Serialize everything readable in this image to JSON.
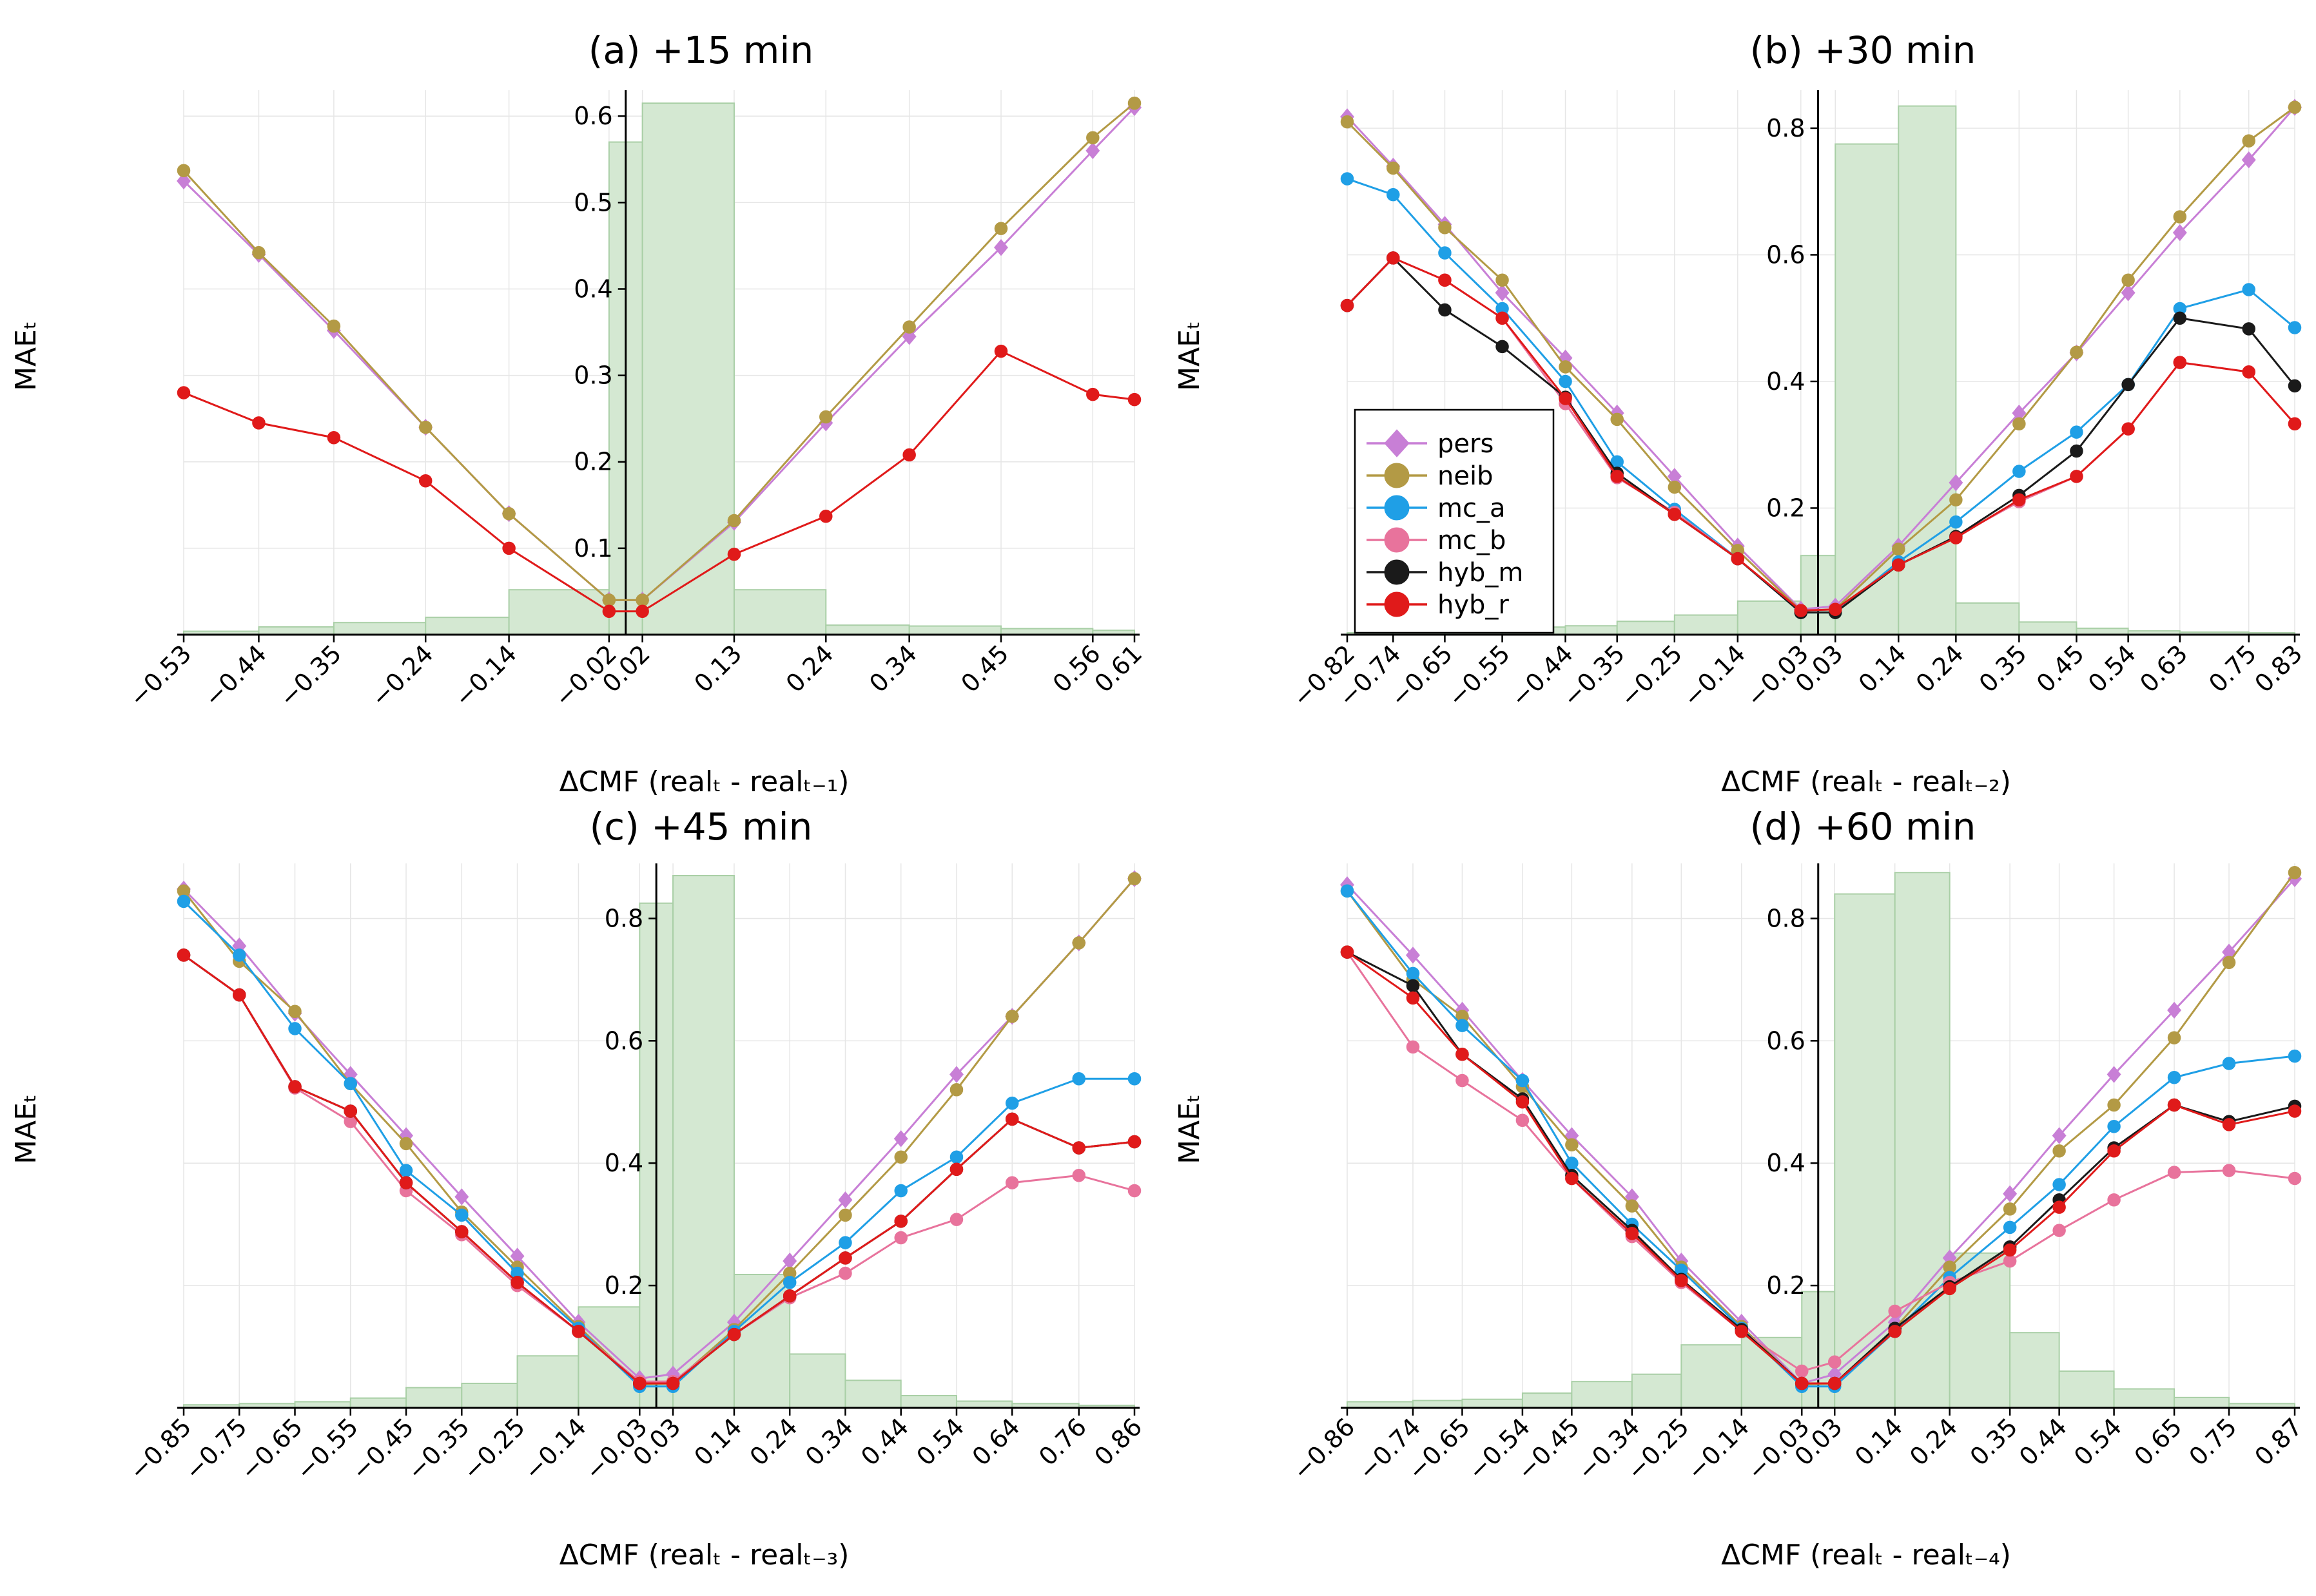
{
  "colors": {
    "pers": "#c87fd6",
    "neib": "#b39a45",
    "mc_a": "#1f9fe6",
    "mc_b": "#e8739c",
    "hyb_m": "#1a1a1a",
    "hyb_r": "#e01a1a",
    "hist_fill": "#d4e8d2",
    "hist_edge": "#a9cfa6"
  },
  "legend": {
    "entries": [
      "pers",
      "neib",
      "mc_a",
      "mc_b",
      "hyb_m",
      "hyb_r"
    ],
    "placement": "inside panel (b), lower-left"
  },
  "chart_data": [
    {
      "type": "line",
      "title": "(a) +15 min",
      "xlabel": "ΔCMF (realₜ - realₜ₋₁)",
      "ylabel": "MAEₜ",
      "xlim": [
        -0.53,
        0.61
      ],
      "ylim": [
        0,
        0.63
      ],
      "yticks": [
        0.1,
        0.2,
        0.3,
        0.4,
        0.5,
        0.6
      ],
      "y_tick_labels": [
        "0.1",
        "0.2",
        "0.3",
        "0.4",
        "0.5",
        "0.6"
      ],
      "x": [
        -0.53,
        -0.44,
        -0.35,
        -0.24,
        -0.14,
        -0.02,
        0.02,
        0.13,
        0.24,
        0.34,
        0.45,
        0.56,
        0.61
      ],
      "x_tick_labels": [
        "−0.53",
        "−0.44",
        "−0.35",
        "−0.24",
        "−0.14",
        "−0.02",
        "0.02",
        "0.13",
        "0.24",
        "0.34",
        "0.45",
        "0.56",
        "0.61"
      ],
      "series": [
        {
          "name": "pers",
          "values": [
            0.525,
            0.44,
            0.352,
            0.24,
            0.14,
            0.04,
            0.04,
            0.13,
            0.245,
            0.345,
            0.448,
            0.56,
            0.61
          ]
        },
        {
          "name": "neib",
          "values": [
            0.537,
            0.442,
            0.357,
            0.24,
            0.14,
            0.04,
            0.04,
            0.132,
            0.252,
            0.356,
            0.47,
            0.575,
            0.615
          ]
        },
        {
          "name": "hyb_r",
          "values": [
            0.28,
            0.245,
            0.228,
            0.178,
            0.1,
            0.027,
            0.027,
            0.093,
            0.137,
            0.208,
            0.328,
            0.278,
            0.272
          ]
        }
      ],
      "histogram": {
        "edges": [
          -0.53,
          -0.44,
          -0.35,
          -0.24,
          -0.14,
          -0.02,
          0.02,
          0.13,
          0.24,
          0.34,
          0.45,
          0.56,
          0.61
        ],
        "heights": [
          0.004,
          0.009,
          0.014,
          0.02,
          0.052,
          0.57,
          0.615,
          0.052,
          0.011,
          0.01,
          0.007,
          0.005
        ]
      },
      "vline_at": 0
    },
    {
      "type": "line",
      "title": "(b) +30 min",
      "xlabel": "ΔCMF (realₜ - realₜ₋₂)",
      "ylabel": "MAEₜ",
      "xlim": [
        -0.82,
        0.83
      ],
      "ylim": [
        0,
        0.86
      ],
      "yticks": [
        0.2,
        0.4,
        0.6,
        0.8
      ],
      "y_tick_labels": [
        "0.2",
        "0.4",
        "0.6",
        "0.8"
      ],
      "x": [
        -0.82,
        -0.74,
        -0.65,
        -0.55,
        -0.44,
        -0.35,
        -0.25,
        -0.14,
        -0.03,
        0.03,
        0.14,
        0.24,
        0.35,
        0.45,
        0.54,
        0.63,
        0.75,
        0.83
      ],
      "x_tick_labels": [
        "−0.82",
        "−0.74",
        "−0.65",
        "−0.55",
        "−0.44",
        "−0.35",
        "−0.25",
        "−0.14",
        "−0.03",
        "0.03",
        "0.14",
        "0.24",
        "0.35",
        "0.45",
        "0.54",
        "0.63",
        "0.75",
        "0.83"
      ],
      "series": [
        {
          "name": "pers",
          "values": [
            0.818,
            0.74,
            0.648,
            0.54,
            0.437,
            0.35,
            0.25,
            0.14,
            0.04,
            0.045,
            0.14,
            0.24,
            0.35,
            0.445,
            0.54,
            0.635,
            0.75,
            0.833
          ]
        },
        {
          "name": "neib",
          "values": [
            0.81,
            0.737,
            0.643,
            0.56,
            0.423,
            0.34,
            0.233,
            0.133,
            0.038,
            0.04,
            0.135,
            0.213,
            0.333,
            0.446,
            0.56,
            0.66,
            0.78,
            0.833
          ]
        },
        {
          "name": "mc_a",
          "values": [
            0.72,
            0.695,
            0.603,
            0.515,
            0.4,
            0.273,
            0.198,
            0.12,
            0.035,
            0.035,
            0.115,
            0.178,
            0.258,
            0.32,
            0.395,
            0.515,
            0.545,
            0.485
          ]
        },
        {
          "name": "mc_b",
          "values": [
            0.52,
            0.595,
            0.56,
            0.5,
            0.365,
            0.248,
            0.193,
            0.12,
            0.038,
            0.04,
            0.11,
            0.155,
            0.21,
            0.25,
            0.325,
            0.43,
            0.415,
            0.333
          ]
        },
        {
          "name": "hyb_m",
          "values": [
            0.52,
            0.595,
            0.513,
            0.455,
            0.375,
            0.255,
            0.19,
            0.12,
            0.035,
            0.035,
            0.11,
            0.155,
            0.22,
            0.29,
            0.395,
            0.5,
            0.483,
            0.393
          ]
        },
        {
          "name": "hyb_r",
          "values": [
            0.52,
            0.595,
            0.56,
            0.5,
            0.373,
            0.25,
            0.19,
            0.12,
            0.038,
            0.04,
            0.11,
            0.153,
            0.213,
            0.25,
            0.325,
            0.43,
            0.415,
            0.333
          ]
        }
      ],
      "histogram": {
        "edges": [
          -0.82,
          -0.74,
          -0.65,
          -0.55,
          -0.44,
          -0.35,
          -0.25,
          -0.14,
          -0.03,
          0.03,
          0.14,
          0.24,
          0.35,
          0.45,
          0.54,
          0.63,
          0.75,
          0.83
        ],
        "heights": [
          0.003,
          0.004,
          0.007,
          0.012,
          0.014,
          0.021,
          0.031,
          0.053,
          0.125,
          0.775,
          0.835,
          0.05,
          0.02,
          0.01,
          0.006,
          0.004,
          0.003
        ]
      },
      "vline_at": 0
    },
    {
      "type": "line",
      "title": "(c) +45 min",
      "xlabel": "ΔCMF (realₜ - realₜ₋₃)",
      "ylabel": "MAEₜ",
      "xlim": [
        -0.85,
        0.86
      ],
      "ylim": [
        0,
        0.89
      ],
      "yticks": [
        0.2,
        0.4,
        0.6,
        0.8
      ],
      "y_tick_labels": [
        "0.2",
        "0.4",
        "0.6",
        "0.8"
      ],
      "x": [
        -0.85,
        -0.75,
        -0.65,
        -0.55,
        -0.45,
        -0.35,
        -0.25,
        -0.14,
        -0.03,
        0.03,
        0.14,
        0.24,
        0.34,
        0.44,
        0.54,
        0.64,
        0.76,
        0.86
      ],
      "x_tick_labels": [
        "−0.85",
        "−0.75",
        "−0.65",
        "−0.55",
        "−0.45",
        "−0.35",
        "−0.25",
        "−0.14",
        "−0.03",
        "0.03",
        "0.14",
        "0.24",
        "0.34",
        "0.44",
        "0.54",
        "0.64",
        "0.76",
        "0.86"
      ],
      "series": [
        {
          "name": "pers",
          "values": [
            0.848,
            0.755,
            0.645,
            0.545,
            0.445,
            0.345,
            0.248,
            0.14,
            0.048,
            0.055,
            0.14,
            0.24,
            0.34,
            0.44,
            0.545,
            0.64,
            0.76,
            0.865
          ]
        },
        {
          "name": "neib",
          "values": [
            0.845,
            0.73,
            0.648,
            0.53,
            0.432,
            0.32,
            0.23,
            0.133,
            0.038,
            0.04,
            0.128,
            0.22,
            0.315,
            0.41,
            0.52,
            0.64,
            0.76,
            0.865
          ]
        },
        {
          "name": "mc_a",
          "values": [
            0.828,
            0.74,
            0.62,
            0.53,
            0.388,
            0.315,
            0.22,
            0.13,
            0.035,
            0.035,
            0.125,
            0.205,
            0.27,
            0.355,
            0.41,
            0.498,
            0.538,
            0.538
          ]
        },
        {
          "name": "mc_b",
          "values": [
            0.74,
            0.675,
            0.523,
            0.468,
            0.355,
            0.283,
            0.2,
            0.125,
            0.043,
            0.043,
            0.12,
            0.18,
            0.22,
            0.278,
            0.308,
            0.368,
            0.38,
            0.355
          ]
        },
        {
          "name": "hyb_m",
          "values": [
            0.74,
            0.675,
            0.525,
            0.485,
            0.368,
            0.288,
            0.205,
            0.125,
            0.04,
            0.04,
            0.12,
            0.183,
            0.245,
            0.305,
            0.39,
            0.472,
            0.425,
            0.435
          ]
        },
        {
          "name": "hyb_r",
          "values": [
            0.74,
            0.675,
            0.525,
            0.485,
            0.368,
            0.288,
            0.205,
            0.125,
            0.04,
            0.04,
            0.12,
            0.183,
            0.245,
            0.305,
            0.39,
            0.472,
            0.425,
            0.435
          ]
        }
      ],
      "histogram": {
        "edges": [
          -0.85,
          -0.75,
          -0.65,
          -0.55,
          -0.45,
          -0.35,
          -0.25,
          -0.14,
          -0.03,
          0.03,
          0.14,
          0.24,
          0.34,
          0.44,
          0.54,
          0.64,
          0.76,
          0.86
        ],
        "heights": [
          0.005,
          0.007,
          0.01,
          0.016,
          0.033,
          0.04,
          0.085,
          0.165,
          0.825,
          0.87,
          0.218,
          0.088,
          0.045,
          0.02,
          0.011,
          0.007,
          0.004
        ]
      },
      "vline_at": 0
    },
    {
      "type": "line",
      "title": "(d) +60 min",
      "xlabel": "ΔCMF (realₜ - realₜ₋₄)",
      "ylabel": "MAEₜ",
      "xlim": [
        -0.86,
        0.87
      ],
      "ylim": [
        0,
        0.89
      ],
      "yticks": [
        0.2,
        0.4,
        0.6,
        0.8
      ],
      "y_tick_labels": [
        "0.2",
        "0.4",
        "0.6",
        "0.8"
      ],
      "x": [
        -0.86,
        -0.74,
        -0.65,
        -0.54,
        -0.45,
        -0.34,
        -0.25,
        -0.14,
        -0.03,
        0.03,
        0.14,
        0.24,
        0.35,
        0.44,
        0.54,
        0.65,
        0.75,
        0.87
      ],
      "x_tick_labels": [
        "−0.86",
        "−0.74",
        "−0.65",
        "−0.54",
        "−0.45",
        "−0.34",
        "−0.25",
        "−0.14",
        "−0.03",
        "0.03",
        "0.14",
        "0.24",
        "0.35",
        "0.44",
        "0.54",
        "0.65",
        "0.75",
        "0.87"
      ],
      "series": [
        {
          "name": "pers",
          "values": [
            0.855,
            0.74,
            0.65,
            0.535,
            0.445,
            0.345,
            0.24,
            0.14,
            0.04,
            0.055,
            0.14,
            0.245,
            0.35,
            0.445,
            0.545,
            0.65,
            0.745,
            0.865
          ]
        },
        {
          "name": "neib",
          "values": [
            0.845,
            0.7,
            0.64,
            0.525,
            0.43,
            0.33,
            0.23,
            0.133,
            0.038,
            0.04,
            0.13,
            0.23,
            0.325,
            0.42,
            0.495,
            0.605,
            0.728,
            0.875
          ]
        },
        {
          "name": "mc_a",
          "values": [
            0.845,
            0.71,
            0.625,
            0.535,
            0.4,
            0.3,
            0.225,
            0.13,
            0.035,
            0.035,
            0.125,
            0.213,
            0.295,
            0.365,
            0.46,
            0.54,
            0.563,
            0.575
          ]
        },
        {
          "name": "mc_b",
          "values": [
            0.745,
            0.59,
            0.535,
            0.47,
            0.375,
            0.28,
            0.205,
            0.125,
            0.06,
            0.075,
            0.158,
            0.205,
            0.24,
            0.29,
            0.34,
            0.385,
            0.388,
            0.375
          ]
        },
        {
          "name": "hyb_m",
          "values": [
            0.745,
            0.69,
            0.578,
            0.505,
            0.38,
            0.29,
            0.21,
            0.128,
            0.04,
            0.04,
            0.13,
            0.198,
            0.263,
            0.34,
            0.425,
            0.495,
            0.468,
            0.493
          ]
        },
        {
          "name": "hyb_r",
          "values": [
            0.745,
            0.67,
            0.578,
            0.5,
            0.375,
            0.285,
            0.208,
            0.125,
            0.04,
            0.04,
            0.125,
            0.195,
            0.258,
            0.328,
            0.42,
            0.495,
            0.463,
            0.485
          ]
        }
      ],
      "histogram": {
        "edges": [
          -0.86,
          -0.74,
          -0.65,
          -0.54,
          -0.45,
          -0.34,
          -0.25,
          -0.14,
          -0.03,
          0.03,
          0.14,
          0.24,
          0.35,
          0.44,
          0.54,
          0.65,
          0.75,
          0.87
        ],
        "heights": [
          0.01,
          0.012,
          0.014,
          0.024,
          0.043,
          0.055,
          0.103,
          0.115,
          0.19,
          0.84,
          0.875,
          0.253,
          0.123,
          0.06,
          0.031,
          0.017,
          0.007
        ]
      },
      "vline_at": 0
    }
  ]
}
